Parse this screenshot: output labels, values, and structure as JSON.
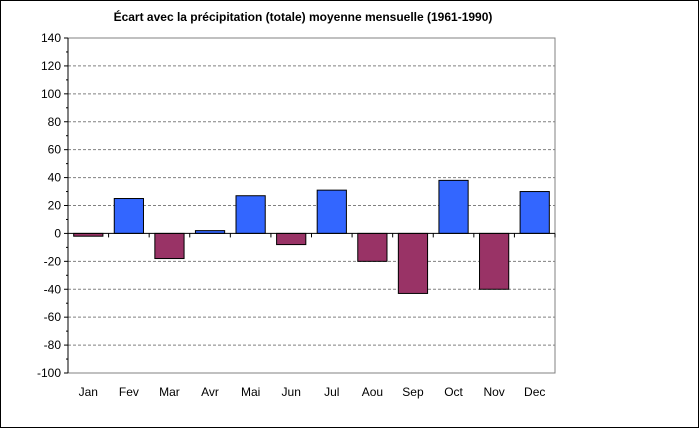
{
  "chart_data": {
    "type": "bar",
    "title": "Écart avec la précipitation (totale) moyenne mensuelle (1961-1990)",
    "xlabel": "",
    "ylabel": "",
    "categories": [
      "Jan",
      "Fev",
      "Mar",
      "Avr",
      "Mai",
      "Jun",
      "Jul",
      "Aou",
      "Sep",
      "Oct",
      "Nov",
      "Dec"
    ],
    "values": [
      -2,
      25,
      -18,
      2,
      27,
      -8,
      31,
      -20,
      -43,
      38,
      -40,
      30
    ],
    "ylim": [
      -100,
      140
    ],
    "yticks": [
      140,
      120,
      100,
      80,
      60,
      40,
      20,
      0,
      -20,
      -40,
      -60,
      -80,
      -100
    ],
    "grid": true,
    "legend": "none",
    "colors": {
      "positive": "#3366FF",
      "negative": "#993366",
      "gridline": "#808080",
      "axis": "#000000"
    }
  }
}
